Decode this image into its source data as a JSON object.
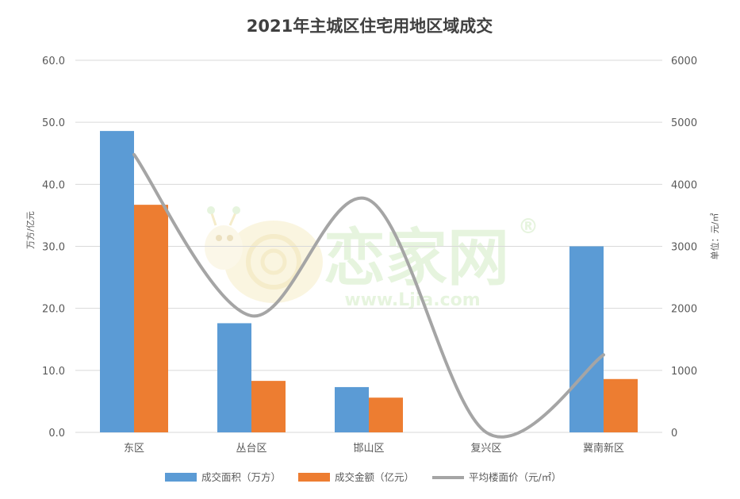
{
  "watermark": {
    "brand": "恋家网",
    "url": "www.Ljia.com",
    "registered": "®"
  },
  "colors": {
    "area": "#5b9bd5",
    "amount": "#ed7d31",
    "price": "#a5a5a5",
    "grid": "#d9d9d9",
    "text": "#595959"
  },
  "chart_data": {
    "type": "bar",
    "title": "2021年主城区住宅用地区域成交",
    "categories": [
      "东区",
      "丛台区",
      "邯山区",
      "复兴区",
      "冀南新区"
    ],
    "ylabel": "万方/亿元",
    "y2label": "单位：元/㎡",
    "ylim": [
      0,
      60
    ],
    "y2lim": [
      0,
      6000
    ],
    "yticks": [
      "0.0",
      "10.0",
      "20.0",
      "30.0",
      "40.0",
      "50.0",
      "60.0"
    ],
    "y2ticks": [
      "0",
      "1000",
      "2000",
      "3000",
      "4000",
      "5000",
      "6000"
    ],
    "grid": true,
    "legend_position": "bottom",
    "series": [
      {
        "name": "成交面积（万方）",
        "kind": "bar",
        "axis": "left",
        "values": [
          48.6,
          17.6,
          7.3,
          0,
          30.0
        ]
      },
      {
        "name": "成交金额（亿元）",
        "kind": "bar",
        "axis": "left",
        "values": [
          36.7,
          8.3,
          5.6,
          0,
          8.6
        ]
      },
      {
        "name": "平均楼面价（元/㎡）",
        "kind": "line",
        "axis": "right",
        "smooth": true,
        "values": [
          4480,
          1880,
          3750,
          0,
          1250
        ]
      }
    ]
  }
}
